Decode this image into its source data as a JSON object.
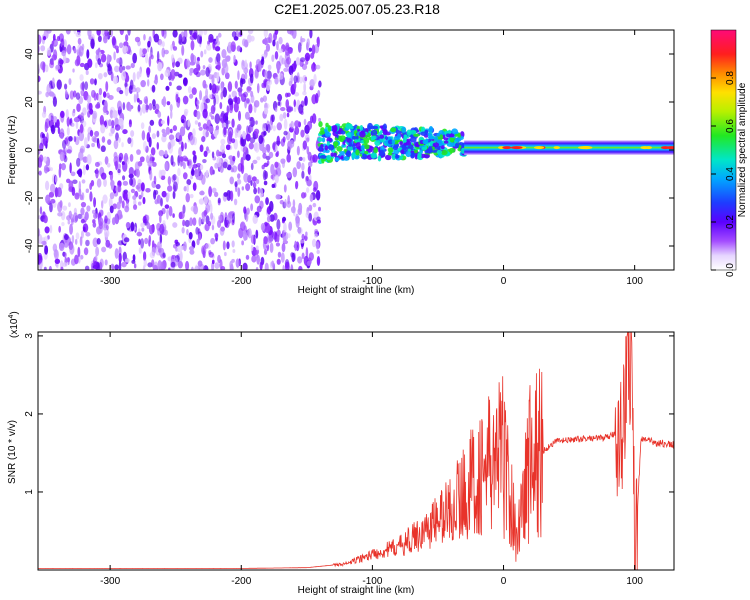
{
  "title": "C2E1.2025.007.05.23.R18",
  "colors": {
    "snr_line": "#e8332a",
    "axis": "#000000",
    "background": "#ffffff"
  },
  "chart_data": [
    {
      "type": "heatmap",
      "xlabel": "Height of straight line (km)",
      "ylabel": "Frequency (Hz)",
      "xlim": [
        -355,
        130
      ],
      "ylim": [
        -50,
        50
      ],
      "xticks": [
        -300,
        -200,
        -100,
        0,
        100
      ],
      "xtick_labels": [
        "-300",
        "-200",
        "-100",
        "0",
        "100"
      ],
      "yticks": [
        -40,
        -20,
        0,
        20,
        40
      ],
      "ytick_labels": [
        "-40",
        "-20",
        "0",
        "20",
        "40"
      ],
      "colorbar": {
        "label": "Normalized spectral amplitude",
        "range": [
          0,
          1
        ],
        "ticks": [
          0,
          0.2,
          0.4,
          0.6,
          0.8
        ],
        "tick_labels": [
          "0.0",
          "0.2",
          "0.4",
          "0.6",
          "0.8"
        ],
        "colormap": "rainbow (white-violet-blue-cyan-green-yellow-red-magenta)"
      },
      "description_regions": [
        {
          "x_range": [
            -355,
            -140
          ],
          "freq_range": [
            -50,
            50
          ],
          "amplitude": "low",
          "texture": "scattered noise"
        },
        {
          "x_range": [
            -140,
            -30
          ],
          "freq_center": 3,
          "freq_halfwidth": 8,
          "amplitude": "medium"
        },
        {
          "x_range": [
            -30,
            130
          ],
          "freq_center": 1,
          "freq_halfwidth": 3,
          "amplitude": "high"
        }
      ]
    },
    {
      "type": "line",
      "xlabel": "Height of straight line (km)",
      "ylabel": "SNR (10 * v/v)",
      "y_multiplier": "(x10^4)",
      "y_multiplier_base": "(x10",
      "y_multiplier_exp": "4",
      "y_multiplier_close": ")",
      "xlim": [
        -355,
        130
      ],
      "ylim": [
        0,
        3.05
      ],
      "xticks": [
        -300,
        -200,
        -100,
        0,
        100
      ],
      "xtick_labels": [
        "-300",
        "-200",
        "-100",
        "0",
        "100"
      ],
      "yticks": [
        1,
        2,
        3
      ],
      "ytick_labels": [
        "1",
        "2",
        "3"
      ],
      "series": [
        {
          "x": [
            -355,
            -300,
            -200,
            -150,
            -120,
            -100,
            -80,
            -60,
            -40,
            -20,
            0,
            10,
            20,
            40,
            60,
            80,
            90,
            95,
            98,
            100,
            105,
            110,
            130
          ],
          "y": [
            0.02,
            0.02,
            0.02,
            0.03,
            0.08,
            0.2,
            0.3,
            0.5,
            0.8,
            1.2,
            1.5,
            0.4,
            1.4,
            1.65,
            1.68,
            1.7,
            1.8,
            2.5,
            3.05,
            0.1,
            1.7,
            1.65,
            1.6
          ]
        }
      ]
    }
  ]
}
